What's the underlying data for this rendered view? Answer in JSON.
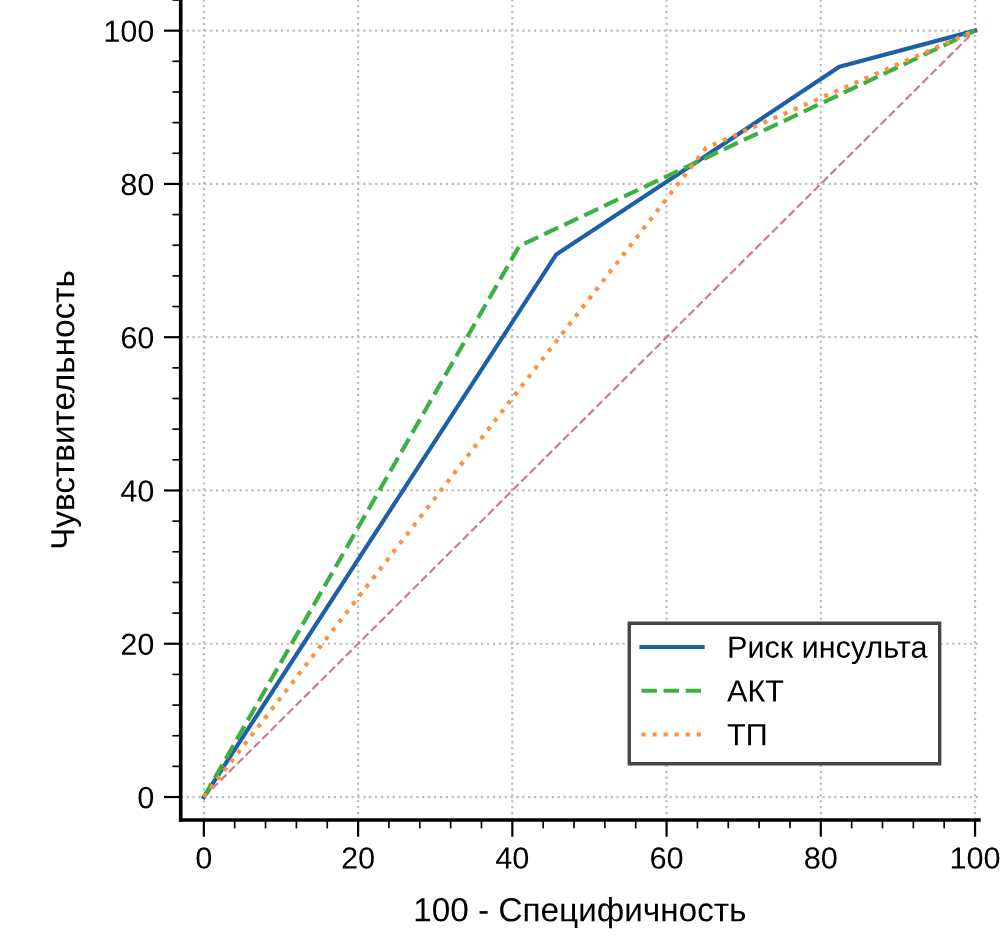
{
  "chart_data": {
    "type": "line",
    "xlabel": "100 - Специфичность",
    "ylabel": "Чувствительность",
    "xlim": [
      -3,
      100.5
    ],
    "ylim": [
      -3,
      104
    ],
    "xticks": [
      0,
      20,
      40,
      60,
      80,
      100
    ],
    "yticks": [
      0,
      20,
      40,
      60,
      80,
      100
    ],
    "grid": true,
    "legend": "bottom right",
    "series": [
      {
        "name": "Риск инсульта",
        "color": "#1f5fa8",
        "line_style": "solid",
        "x": [
          0,
          45.7,
          63.5,
          82.4,
          100
        ],
        "values": [
          0,
          70.8,
          82.6,
          95.3,
          100
        ]
      },
      {
        "name": "АКТ",
        "color": "#3cb043",
        "line_style": "dashed",
        "x": [
          0,
          40.9,
          100
        ],
        "values": [
          0,
          71.9,
          100
        ]
      },
      {
        "name": "ТП",
        "color": "#ff9040",
        "line_style": "dotted",
        "x": [
          0,
          65.1,
          100
        ],
        "values": [
          0,
          84.7,
          100
        ]
      },
      {
        "color": "#c8808f",
        "line_style": "dashed",
        "x": [
          0,
          100
        ],
        "values": [
          0,
          100
        ]
      }
    ]
  }
}
